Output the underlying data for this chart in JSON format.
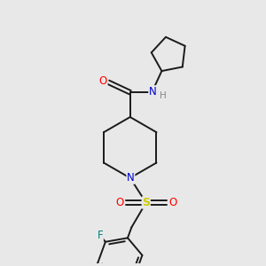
{
  "background_color": "#e8e8e8",
  "bond_color": "#1a1a1a",
  "atom_colors": {
    "O": "#ff0000",
    "N": "#0000cd",
    "S": "#cccc00",
    "F": "#008080",
    "H": "#888888"
  },
  "figsize": [
    3.0,
    3.0
  ],
  "dpi": 100
}
